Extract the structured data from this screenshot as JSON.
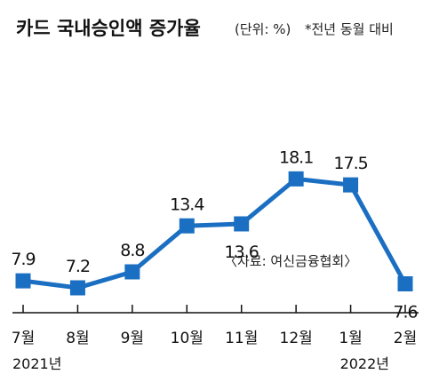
{
  "chart_data": {
    "type": "line",
    "title": "카드 국내승인액 증가율",
    "unit_label": "(단위: %)",
    "note": "*전년 동월 대비",
    "source": "〈자료: 여신금융협회〉",
    "categories": [
      "7월",
      "8월",
      "9월",
      "10월",
      "11월",
      "12월",
      "1월",
      "2월"
    ],
    "year_labels": [
      {
        "text": "2021년",
        "category_index": 0
      },
      {
        "text": "2022년",
        "category_index": 6
      }
    ],
    "series": [
      {
        "values": [
          7.9,
          7.2,
          8.8,
          13.4,
          13.6,
          18.1,
          17.5,
          7.6
        ]
      }
    ],
    "value_labels": [
      "7.9",
      "7.2",
      "8.8",
      "13.4",
      "13.6",
      "18.1",
      "17.5",
      "7.6"
    ],
    "ylim": [
      4,
      20
    ],
    "grid": false,
    "colors": {
      "line": "#1b6fc2",
      "marker": "#1b6fc2",
      "axis": "#111111"
    }
  }
}
